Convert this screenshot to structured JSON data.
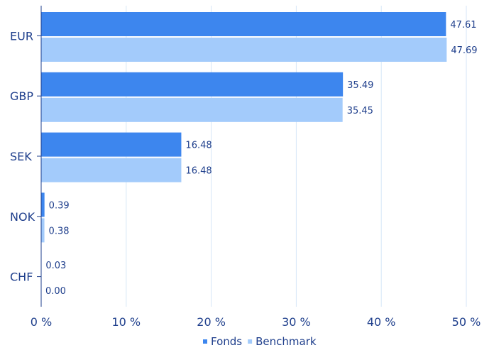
{
  "chart_data": {
    "type": "bar",
    "orientation": "horizontal",
    "categories": [
      "EUR",
      "GBP",
      "SEK",
      "NOK",
      "CHF"
    ],
    "series": [
      {
        "name": "Fonds",
        "color": "#3d86ee",
        "values": [
          47.61,
          35.49,
          16.48,
          0.39,
          0.03
        ],
        "labels": [
          "47.61",
          "35.49",
          "16.48",
          "0.39",
          "0.03"
        ]
      },
      {
        "name": "Benchmark",
        "color": "#a3cbfb",
        "values": [
          47.69,
          35.45,
          16.48,
          0.38,
          0.0
        ],
        "labels": [
          "47.69",
          "35.45",
          "16.48",
          "0.38",
          "0.00"
        ]
      }
    ],
    "xlim": [
      0,
      50
    ],
    "x_ticks": [
      0,
      10,
      20,
      30,
      40,
      50
    ],
    "x_tick_labels": [
      "0 %",
      "10 %",
      "20 %",
      "30 %",
      "40 %",
      "50 %"
    ],
    "title": "",
    "xlabel": "",
    "ylabel": "",
    "grid": "vertical",
    "legend_position": "bottom-center",
    "colors": {
      "text": "#1f3f8c",
      "grid": "#d6e6f7",
      "axis": "#1f3f8c"
    }
  }
}
